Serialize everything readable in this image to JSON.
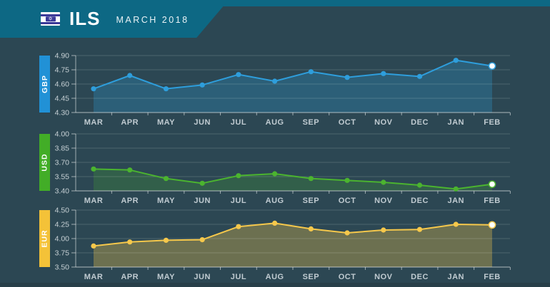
{
  "header": {
    "currency_code": "ILS",
    "period": "MARCH 2018",
    "flag": "israel-flag",
    "star_glyph": "✡"
  },
  "theme": {
    "background": "#2c4753",
    "header_teal": "#0d6884",
    "footer_strip": "#283f49",
    "flag_blue": "#3c3a99",
    "grid_line": "rgba(255,255,255,0.16)",
    "axis_line": "rgba(255,255,255,0.55)",
    "ytick_text": "#c7d1d5",
    "month_text": "#c0cbd1",
    "highlight_dot": "#ffffff"
  },
  "chart_data": [
    {
      "type": "area",
      "name": "GBP",
      "line_color": "#2e9edc",
      "bar_color": "#2191d6",
      "fill_opacity": 0.28,
      "categories": [
        "MAR",
        "APR",
        "MAY",
        "JUN",
        "JUL",
        "AUG",
        "SEP",
        "OCT",
        "NOV",
        "DEC",
        "JAN",
        "FEB"
      ],
      "values": [
        4.55,
        4.69,
        4.55,
        4.59,
        4.7,
        4.63,
        4.73,
        4.67,
        4.71,
        4.68,
        4.85,
        4.79
      ],
      "ylim": [
        4.3,
        4.9
      ],
      "yticks": [
        4.9,
        4.75,
        4.6,
        4.45,
        4.3
      ],
      "grid": true,
      "highlight_last_point": true
    },
    {
      "type": "area",
      "name": "USD",
      "line_color": "#4bb42f",
      "bar_color": "#42ad27",
      "fill_opacity": 0.22,
      "categories": [
        "MAR",
        "APR",
        "MAY",
        "JUN",
        "JUL",
        "AUG",
        "SEP",
        "OCT",
        "NOV",
        "DEC",
        "JAN",
        "FEB"
      ],
      "values": [
        3.63,
        3.62,
        3.53,
        3.48,
        3.56,
        3.58,
        3.53,
        3.51,
        3.49,
        3.46,
        3.42,
        3.47
      ],
      "ylim": [
        3.4,
        4.0
      ],
      "yticks": [
        4.0,
        3.85,
        3.7,
        3.55,
        3.4
      ],
      "grid": true,
      "highlight_last_point": true
    },
    {
      "type": "area",
      "name": "EUR",
      "line_color": "#f6c84b",
      "bar_color": "#f4c238",
      "fill_opacity": 0.32,
      "categories": [
        "MAR",
        "APR",
        "MAY",
        "JUN",
        "JUL",
        "AUG",
        "SEP",
        "OCT",
        "NOV",
        "DEC",
        "JAN",
        "FEB"
      ],
      "values": [
        3.87,
        3.94,
        3.97,
        3.98,
        4.21,
        4.27,
        4.17,
        4.1,
        4.15,
        4.16,
        4.25,
        4.24
      ],
      "ylim": [
        3.5,
        4.5
      ],
      "yticks": [
        4.5,
        4.25,
        4.0,
        3.75,
        3.5
      ],
      "grid": true,
      "highlight_last_point": true
    }
  ]
}
